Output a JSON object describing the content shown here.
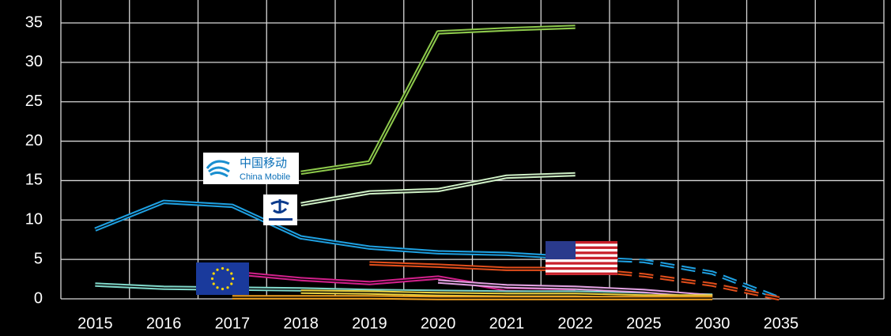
{
  "chart_data": {
    "type": "line",
    "categories": [
      "2015",
      "2016",
      "2017",
      "2018",
      "2019",
      "2020",
      "2021",
      "2022",
      "2025",
      "2030",
      "2035",
      null
    ],
    "ylim": [
      0,
      35
    ],
    "yticks": [
      0,
      5,
      10,
      15,
      20,
      25,
      30,
      35
    ],
    "grid": true,
    "series": [
      {
        "color": "#8cc84b",
        "values": [
          null,
          null,
          null,
          16,
          17.3,
          33.8,
          34.2,
          34.5,
          null,
          null,
          null,
          null
        ]
      },
      {
        "color": "#cdeec4",
        "values": [
          null,
          null,
          null,
          12,
          13.5,
          13.8,
          15.5,
          15.8,
          null,
          null,
          null,
          null
        ]
      },
      {
        "color": "#1e9fe0",
        "values": [
          8.8,
          12.3,
          11.8,
          7.8,
          6.5,
          5.9,
          5.7,
          5.2,
          null,
          null,
          null,
          null
        ]
      },
      {
        "color": "#1e9fe0",
        "dashed": true,
        "values": [
          null,
          null,
          null,
          null,
          null,
          null,
          null,
          5.2,
          4.8,
          3.3,
          0,
          null
        ]
      },
      {
        "color": "#e24e1b",
        "values": [
          null,
          null,
          null,
          null,
          4.5,
          4.2,
          3.8,
          3.8,
          null,
          null,
          null,
          null
        ]
      },
      {
        "color": "#e24e1b",
        "dashed": true,
        "values": [
          null,
          null,
          null,
          null,
          null,
          null,
          null,
          3.8,
          3.0,
          1.8,
          0,
          null
        ]
      },
      {
        "color": "#d0208a",
        "values": [
          null,
          null,
          3.3,
          2.5,
          2.0,
          2.7,
          1.2,
          1.0,
          null,
          null,
          null,
          null
        ]
      },
      {
        "color": "#7fd6c8",
        "values": [
          1.8,
          1.4,
          1.3,
          1.2,
          1.0,
          0.9,
          0.8,
          0.8,
          0.6,
          0.4,
          null,
          null
        ]
      },
      {
        "color": "#e0a0e0",
        "values": [
          null,
          null,
          null,
          null,
          null,
          2.2,
          1.6,
          1.4,
          1.0,
          0.3,
          null,
          null
        ]
      },
      {
        "color": "#e8d040",
        "values": [
          null,
          null,
          null,
          0.9,
          0.8,
          0.6,
          0.5,
          0.5,
          0.3,
          0.3,
          null,
          null
        ]
      },
      {
        "color": "#f0a020",
        "values": [
          null,
          null,
          0.2,
          0.2,
          0.2,
          0.1,
          0.1,
          0.1,
          0.1,
          0.1,
          null,
          null
        ]
      }
    ],
    "logo_text": [
      "中国移动",
      "China Mobile"
    ]
  }
}
